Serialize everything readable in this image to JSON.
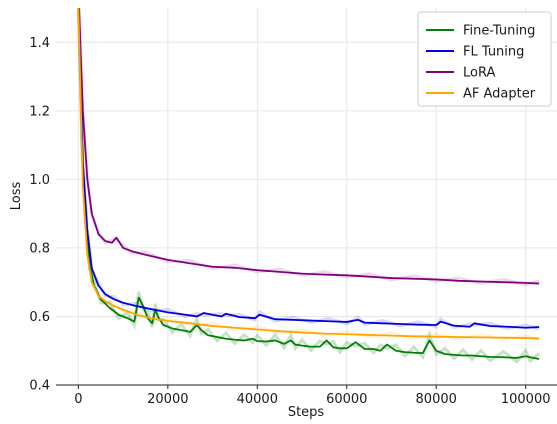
{
  "chart_data": {
    "type": "line",
    "title": "",
    "xlabel": "Steps",
    "ylabel": "Loss",
    "xlim": [
      -5000,
      107000
    ],
    "ylim": [
      0.4,
      1.5
    ],
    "xticks": [
      0,
      20000,
      40000,
      60000,
      80000,
      100000
    ],
    "xtick_labels": [
      "0",
      "20000",
      "40000",
      "60000",
      "80000",
      "100000"
    ],
    "yticks": [
      0.4,
      0.6,
      0.8,
      1.0,
      1.2,
      1.4
    ],
    "ytick_labels": [
      "0.4",
      "0.6",
      "0.8",
      "1.0",
      "1.2",
      "1.4"
    ],
    "grid": true,
    "legend_position": "top-right",
    "series": [
      {
        "name": "Fine-Tuning",
        "color": "#008000",
        "x": [
          0,
          800,
          1500,
          2500,
          3500,
          5000,
          7000,
          9000,
          11000,
          12500,
          13500,
          14500,
          15500,
          16500,
          17200,
          17800,
          19000,
          21000,
          23000,
          25000,
          26500,
          27500,
          29000,
          31000,
          33000,
          35000,
          37000,
          39000,
          40000,
          42000,
          44000,
          46000,
          47500,
          48500,
          50000,
          52000,
          54000,
          55500,
          57000,
          58500,
          60000,
          62000,
          64000,
          66000,
          67500,
          69000,
          71000,
          73000,
          75000,
          77000,
          78500,
          80000,
          82000,
          84000,
          86000,
          88000,
          90000,
          92000,
          95000,
          98000,
          100000,
          101000,
          103000
        ],
        "values": [
          1.52,
          1.1,
          0.88,
          0.75,
          0.69,
          0.65,
          0.625,
          0.605,
          0.595,
          0.585,
          0.655,
          0.63,
          0.595,
          0.58,
          0.62,
          0.6,
          0.575,
          0.565,
          0.56,
          0.555,
          0.575,
          0.56,
          0.545,
          0.54,
          0.535,
          0.532,
          0.53,
          0.535,
          0.528,
          0.527,
          0.53,
          0.52,
          0.53,
          0.518,
          0.515,
          0.512,
          0.512,
          0.53,
          0.51,
          0.507,
          0.507,
          0.525,
          0.505,
          0.505,
          0.5,
          0.518,
          0.5,
          0.496,
          0.494,
          0.493,
          0.53,
          0.5,
          0.49,
          0.488,
          0.486,
          0.486,
          0.484,
          0.482,
          0.481,
          0.479,
          0.484,
          0.481,
          0.476
        ]
      },
      {
        "name": "FL Tuning",
        "color": "#0000dd",
        "x": [
          0,
          1000,
          2000,
          3000,
          4500,
          6000,
          8000,
          10000,
          13000,
          16000,
          20000,
          24000,
          26500,
          28000,
          32000,
          33000,
          36000,
          39500,
          40500,
          44000,
          48000,
          52000,
          56000,
          60000,
          62500,
          64000,
          68000,
          72000,
          76000,
          80000,
          81000,
          84000,
          87500,
          88500,
          92000,
          96000,
          100000,
          103000
        ],
        "values": [
          1.52,
          1.05,
          0.85,
          0.74,
          0.69,
          0.665,
          0.65,
          0.64,
          0.63,
          0.622,
          0.612,
          0.605,
          0.6,
          0.61,
          0.6,
          0.608,
          0.598,
          0.595,
          0.605,
          0.592,
          0.59,
          0.588,
          0.586,
          0.584,
          0.59,
          0.582,
          0.58,
          0.578,
          0.576,
          0.575,
          0.585,
          0.573,
          0.57,
          0.58,
          0.572,
          0.57,
          0.567,
          0.569
        ]
      },
      {
        "name": "LoRA",
        "color": "#800080",
        "x": [
          0,
          1000,
          2000,
          3000,
          4500,
          6000,
          7500,
          8500,
          10000,
          12000,
          15000,
          20000,
          25000,
          30000,
          35000,
          40000,
          45000,
          50000,
          55000,
          60000,
          65000,
          70000,
          75000,
          80000,
          85000,
          90000,
          95000,
          100000,
          103000
        ],
        "values": [
          1.55,
          1.2,
          1.0,
          0.9,
          0.84,
          0.82,
          0.815,
          0.83,
          0.8,
          0.79,
          0.78,
          0.765,
          0.755,
          0.745,
          0.742,
          0.735,
          0.73,
          0.725,
          0.722,
          0.72,
          0.716,
          0.712,
          0.71,
          0.708,
          0.704,
          0.702,
          0.7,
          0.698,
          0.696
        ]
      },
      {
        "name": "AF Adapter",
        "color": "#ffa500",
        "x": [
          0,
          1000,
          2000,
          3000,
          4500,
          6000,
          8000,
          10000,
          13000,
          16000,
          20000,
          25000,
          30000,
          35000,
          40000,
          45000,
          50000,
          55000,
          60000,
          65000,
          70000,
          75000,
          80000,
          85000,
          90000,
          95000,
          100000,
          103000
        ],
        "values": [
          1.5,
          0.98,
          0.78,
          0.7,
          0.66,
          0.645,
          0.63,
          0.62,
          0.605,
          0.595,
          0.587,
          0.58,
          0.572,
          0.567,
          0.562,
          0.557,
          0.553,
          0.55,
          0.548,
          0.546,
          0.544,
          0.542,
          0.541,
          0.54,
          0.539,
          0.538,
          0.537,
          0.536
        ]
      }
    ]
  }
}
